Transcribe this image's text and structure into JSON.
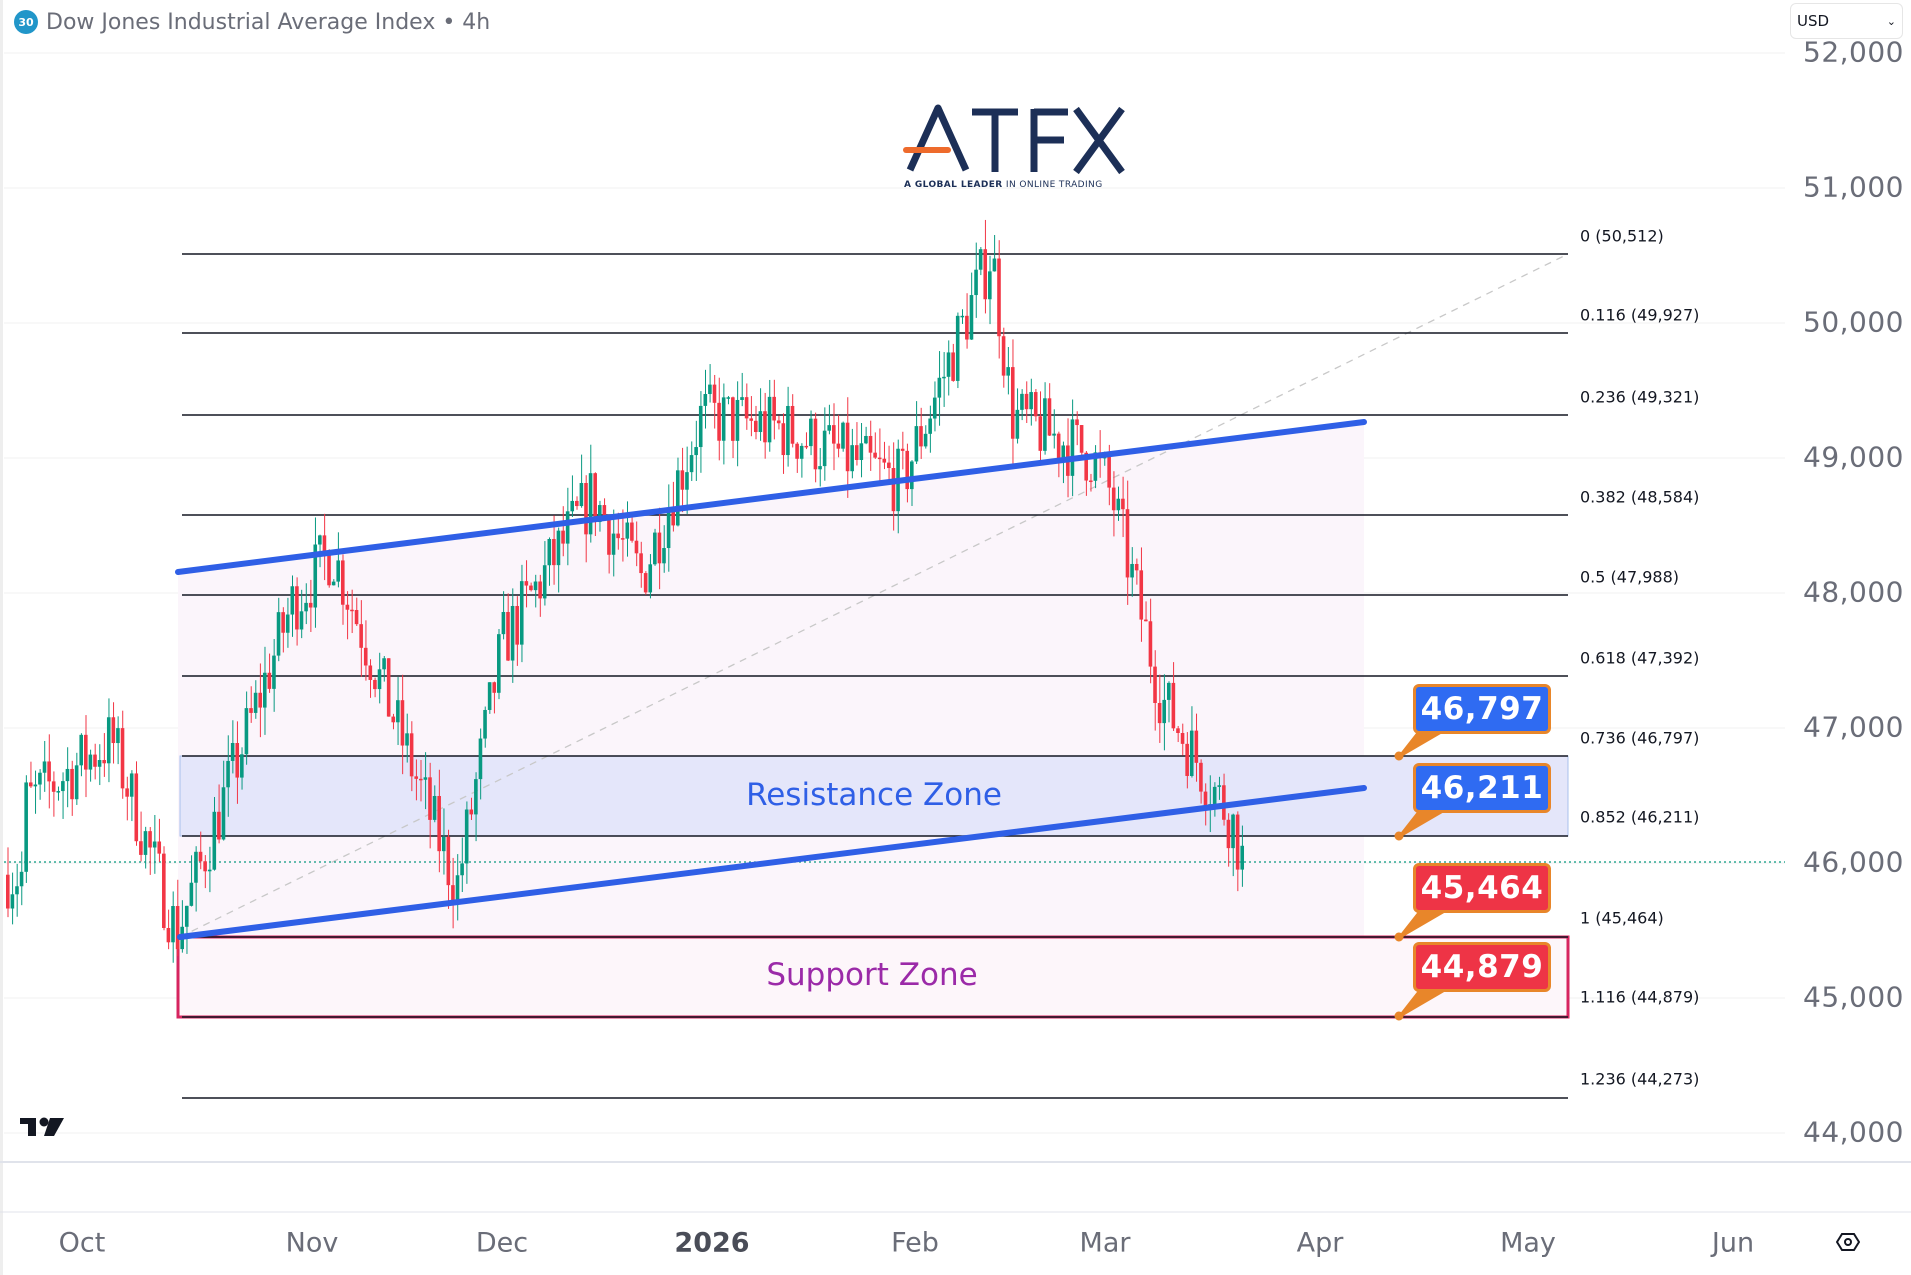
{
  "header": {
    "badge": "30",
    "title": "Dow Jones Industrial Average Index • 4h"
  },
  "currency_select": {
    "value": "USD",
    "icon": "chevron-down-icon"
  },
  "logo": {
    "name": "ATFX",
    "tagline_bold": "A GLOBAL LEADER",
    "tagline": " IN ONLINE TRADING"
  },
  "colors": {
    "up": "#089981",
    "down": "#f23645",
    "channel": "#2f5fe6",
    "resistance_fill": "#e4e6fa",
    "support_border": "#d6245f",
    "callout_blue": "#2f6bf2",
    "callout_red": "#ee3446",
    "callout_border": "#e8862a"
  },
  "zones": {
    "resistance": {
      "label": "Resistance Zone",
      "from": 46211,
      "to": 46797
    },
    "support": {
      "label": "Support Zone",
      "from": 44879,
      "to": 45464
    }
  },
  "callouts": [
    {
      "value": "46,797",
      "style": "blue"
    },
    {
      "value": "46,211",
      "style": "blue"
    },
    {
      "value": "45,464",
      "style": "red"
    },
    {
      "value": "44,879",
      "style": "red"
    }
  ],
  "fib_levels": [
    {
      "label": "0 (50,512)",
      "ratio": 0,
      "price": 50512
    },
    {
      "label": "0.116 (49,927)",
      "ratio": 0.116,
      "price": 49927
    },
    {
      "label": "0.236 (49,321)",
      "ratio": 0.236,
      "price": 49321
    },
    {
      "label": "0.382 (48,584)",
      "ratio": 0.382,
      "price": 48584
    },
    {
      "label": "0.5 (47,988)",
      "ratio": 0.5,
      "price": 47988
    },
    {
      "label": "0.618 (47,392)",
      "ratio": 0.618,
      "price": 47392
    },
    {
      "label": "0.736 (46,797)",
      "ratio": 0.736,
      "price": 46797
    },
    {
      "label": "0.852 (46,211)",
      "ratio": 0.852,
      "price": 46211
    },
    {
      "label": "1 (45,464)",
      "ratio": 1,
      "price": 45464
    },
    {
      "label": "1.116 (44,879)",
      "ratio": 1.116,
      "price": 44879
    },
    {
      "label": "1.236 (44,273)",
      "ratio": 1.236,
      "price": 44273
    }
  ],
  "y_axis": [
    "52,000",
    "51,000",
    "50,000",
    "49,000",
    "48,000",
    "47,000",
    "46,000",
    "45,000",
    "44,000"
  ],
  "x_axis": [
    {
      "label": "Oct",
      "bold": false
    },
    {
      "label": "Nov",
      "bold": false
    },
    {
      "label": "Dec",
      "bold": false
    },
    {
      "label": "2026",
      "bold": true
    },
    {
      "label": "Feb",
      "bold": false
    },
    {
      "label": "Mar",
      "bold": false
    },
    {
      "label": "Apr",
      "bold": false
    },
    {
      "label": "May",
      "bold": false
    },
    {
      "label": "Jun",
      "bold": false
    }
  ],
  "chart_data": {
    "type": "candlestick",
    "title": "Dow Jones Industrial Average Index • 4h",
    "xlabel": "",
    "ylabel": "USD",
    "ylim": [
      43800,
      52100
    ],
    "y_ticks": [
      44000,
      45000,
      46000,
      47000,
      48000,
      49000,
      50000,
      51000,
      52000
    ],
    "x_ticks": [
      "Oct",
      "Nov",
      "Dec",
      "2026",
      "Feb",
      "Mar",
      "Apr",
      "May",
      "Jun"
    ],
    "grid": true,
    "last_price_approx": 46000,
    "price_path_approx": [
      {
        "period": "early Oct",
        "price": 46400
      },
      {
        "period": "mid Oct",
        "price": 46900
      },
      {
        "period": "mid Oct low",
        "price": 45464
      },
      {
        "period": "late Oct",
        "price": 47900
      },
      {
        "period": "early Nov",
        "price": 48300
      },
      {
        "period": "mid Nov",
        "price": 46500
      },
      {
        "period": "late Nov low",
        "price": 45800
      },
      {
        "period": "early Dec",
        "price": 47600
      },
      {
        "period": "mid Dec",
        "price": 48700
      },
      {
        "period": "late Dec",
        "price": 48100
      },
      {
        "period": "early Jan",
        "price": 49300
      },
      {
        "period": "mid Jan",
        "price": 49200
      },
      {
        "period": "late Jan",
        "price": 48800
      },
      {
        "period": "early Feb peak",
        "price": 50512
      },
      {
        "period": "mid Feb",
        "price": 49300
      },
      {
        "period": "late Feb",
        "price": 49000
      },
      {
        "period": "early Mar",
        "price": 48700
      },
      {
        "period": "mid Mar",
        "price": 47200
      },
      {
        "period": "late Mar",
        "price": 46300
      },
      {
        "period": "latest",
        "price": 45900
      }
    ],
    "fibonacci": {
      "levels": [
        0,
        0.116,
        0.236,
        0.382,
        0.5,
        0.618,
        0.736,
        0.852,
        1,
        1.116,
        1.236
      ],
      "prices": [
        50512,
        49927,
        49321,
        48584,
        47988,
        47392,
        46797,
        46211,
        45464,
        44879,
        44273
      ]
    },
    "channel": {
      "upper": [
        {
          "x": "mid Oct",
          "price": 48200
        },
        {
          "x": "early Apr",
          "price": 49260
        }
      ],
      "lower": [
        {
          "x": "mid Oct",
          "price": 45464
        },
        {
          "x": "early Apr",
          "price": 46560
        }
      ]
    },
    "annotations": [
      "Resistance Zone 46,211–46,797",
      "Support Zone 44,879–45,464",
      "46,797",
      "46,211",
      "45,464",
      "44,879"
    ]
  }
}
